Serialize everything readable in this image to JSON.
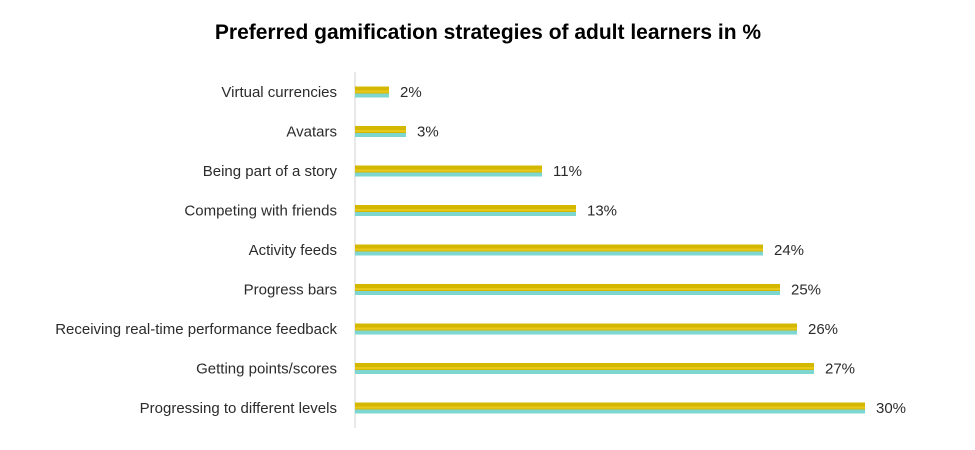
{
  "chart_data": {
    "type": "bar",
    "orientation": "horizontal",
    "title": "Preferred gamification strategies of adult learners in %",
    "xlabel": "",
    "ylabel": "",
    "categories": [
      "Virtual currencies",
      "Avatars",
      "Being part of a story",
      "Competing with friends",
      "Activity feeds",
      "Progress bars",
      "Receiving real-time performance feedback",
      "Getting points/scores",
      "Progressing to different levels"
    ],
    "values": [
      2,
      3,
      11,
      13,
      24,
      25,
      26,
      27,
      30
    ],
    "value_labels": [
      "2%",
      "3%",
      "11%",
      "13%",
      "24%",
      "25%",
      "26%",
      "27%",
      "30%"
    ],
    "xlim": [
      0,
      30
    ],
    "grid": false,
    "legend": "none",
    "colors": {
      "bar_top": "#D4B800",
      "bar_bottom": "#7ED6D0",
      "bar_highlight": "#E8C81A",
      "axis": "#D0D0D0"
    }
  }
}
